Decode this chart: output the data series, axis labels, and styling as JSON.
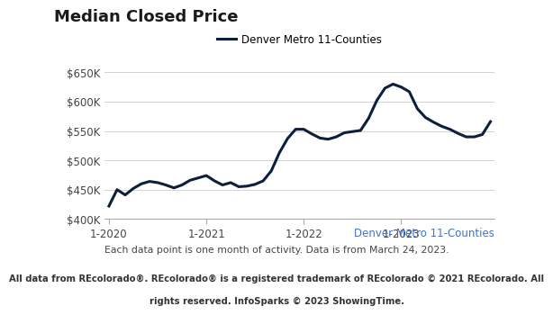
{
  "title": "Median Closed Price",
  "legend_label": "Denver Metro 11-Counties",
  "line_color": "#0d1f3c",
  "line_width": 2.2,
  "annotation_label": "Denver Metro 11-Counties",
  "annotation_color": "#4472c4",
  "sub_caption": "Each data point is one month of activity. Data is from March 24, 2023.",
  "footer_line1": "All data from REcolorado®. REcolorado® is a registered trademark of REcolorado © 2021 REcolorado. All",
  "footer_line2": "rights reserved. InfoSparks © 2023 ShowingTime.",
  "ylim": [
    400000,
    660000
  ],
  "yticks": [
    400000,
    450000,
    500000,
    550000,
    600000,
    650000
  ],
  "xtick_labels": [
    "1-2020",
    "1-2021",
    "1-2022",
    "1-2023"
  ],
  "xtick_positions": [
    0,
    12,
    24,
    36
  ],
  "background_color": "#ffffff",
  "values": [
    422000,
    450000,
    441000,
    452000,
    460000,
    464000,
    462000,
    458000,
    453000,
    458000,
    466000,
    470000,
    474000,
    465000,
    458000,
    462000,
    455000,
    456000,
    459000,
    465000,
    482000,
    513000,
    537000,
    553000,
    553000,
    545000,
    538000,
    536000,
    540000,
    547000,
    549000,
    551000,
    572000,
    602000,
    623000,
    630000,
    625000,
    617000,
    588000,
    573000,
    565000,
    558000,
    553000,
    546000,
    540000,
    540000,
    544000,
    566000
  ],
  "title_fontsize": 13,
  "axis_label_fontsize": 8.5,
  "legend_fontsize": 8.5,
  "caption_fontsize": 7.8,
  "footer_fontsize": 7.2,
  "grid_color": "#cccccc",
  "spine_color": "#aaaaaa",
  "title_color": "#1a1a1a",
  "tick_label_color": "#444444"
}
